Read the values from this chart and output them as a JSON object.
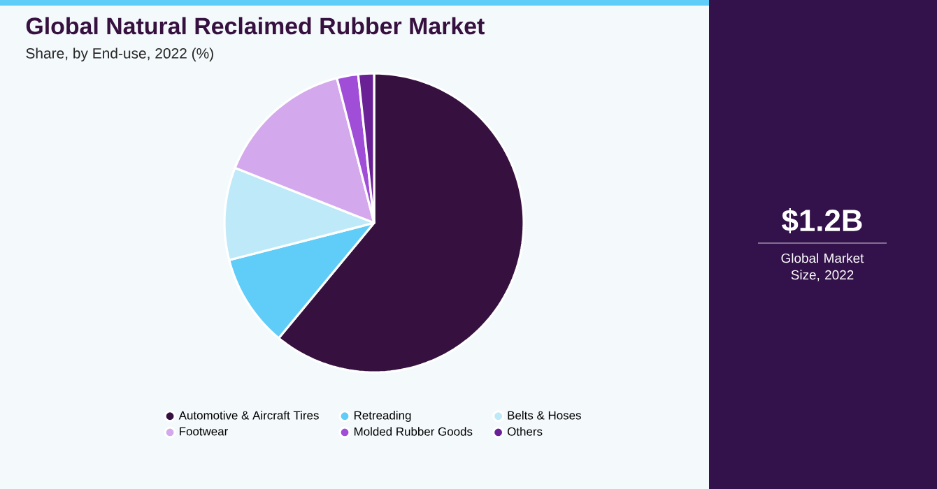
{
  "chart_data": {
    "type": "pie",
    "title": "Global Natural Reclaimed Rubber Market",
    "subtitle": "Share, by End-use, 2022 (%)",
    "categories": [
      "Automotive & Aircraft Tires",
      "Retreading",
      "Belts & Hoses",
      "Footwear",
      "Molded Rubber Goods",
      "Others"
    ],
    "values": [
      61,
      10,
      10,
      15,
      2.3,
      1.7
    ],
    "colors": [
      "#36113f",
      "#5fcdf7",
      "#bde9f8",
      "#d4a8ec",
      "#a04ed8",
      "#6a2196"
    ],
    "legend": "bottom",
    "annotations": [
      "$1.2B",
      "Global Market Size, 2022"
    ]
  }
}
